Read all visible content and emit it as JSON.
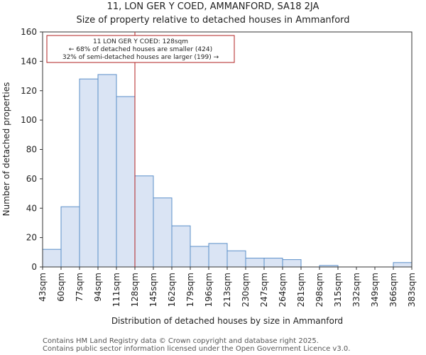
{
  "chart_data": {
    "type": "bar",
    "title": "11, LON GER Y COED, AMMANFORD, SA18 2JA",
    "subtitle": "Size of property relative to detached houses in Ammanford",
    "xlabel": "Distribution of detached houses by size in Ammanford",
    "ylabel": "Number of detached properties",
    "bin_edges": [
      "43sqm",
      "60sqm",
      "77sqm",
      "94sqm",
      "111sqm",
      "128sqm",
      "145sqm",
      "162sqm",
      "179sqm",
      "196sqm",
      "213sqm",
      "230sqm",
      "247sqm",
      "264sqm",
      "281sqm",
      "298sqm",
      "315sqm",
      "332sqm",
      "349sqm",
      "366sqm",
      "383sqm"
    ],
    "values": [
      12,
      41,
      128,
      131,
      116,
      62,
      47,
      28,
      14,
      16,
      11,
      6,
      6,
      5,
      0,
      1,
      0,
      0,
      0,
      3
    ],
    "ylim": [
      0,
      160
    ],
    "yticks": [
      0,
      20,
      40,
      60,
      80,
      100,
      120,
      140,
      160
    ],
    "marker": {
      "value_sqm": 128,
      "bin_index": 5
    },
    "annotation": {
      "line1": "11 LON GER Y COED: 128sqm",
      "line2": "← 68% of detached houses are smaller (424)",
      "line3": "32% of semi-detached houses are larger (199) →"
    },
    "colors": {
      "bar_fill": "#dae4f4",
      "bar_edge": "#5b8fc9",
      "marker": "#b22222"
    }
  },
  "footer": {
    "line1": "Contains HM Land Registry data © Crown copyright and database right 2025.",
    "line2": "Contains public sector information licensed under the Open Government Licence v3.0."
  }
}
